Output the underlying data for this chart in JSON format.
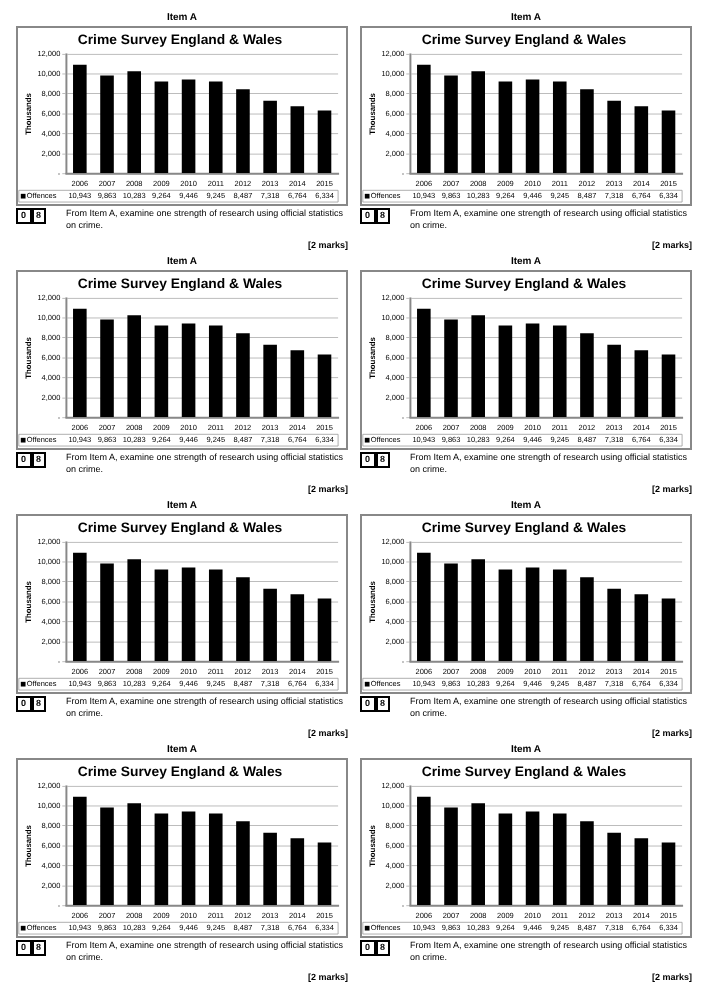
{
  "chart_data": [
    {
      "type": "bar",
      "subtitle": "Item A",
      "title": "Crime Survey England & Wales",
      "ylabel": "Thousands",
      "categories": [
        "2006",
        "2007",
        "2008",
        "2009",
        "2010",
        "2011",
        "2012",
        "2013",
        "2014",
        "2015"
      ],
      "series": [
        {
          "name": "Offences",
          "color": "#000000",
          "values": [
            10943,
            9863,
            10283,
            9264,
            9446,
            9245,
            8487,
            7318,
            6764,
            6334
          ],
          "value_labels": [
            "10,943",
            "9,863",
            "10,283",
            "9,264",
            "9,446",
            "9,245",
            "8,487",
            "7,318",
            "6,764",
            "6,334"
          ]
        }
      ],
      "ylim": [
        0,
        12000
      ],
      "yticks": [
        {
          "value": 0,
          "label": "-"
        },
        {
          "value": 2000,
          "label": "2,000"
        },
        {
          "value": 4000,
          "label": "4,000"
        },
        {
          "value": 6000,
          "label": "6,000"
        },
        {
          "value": 8000,
          "label": "8,000"
        },
        {
          "value": 10000,
          "label": "10,000"
        },
        {
          "value": 12000,
          "label": "12,000"
        }
      ],
      "grid": "y",
      "annotations": [
        "0 8",
        "From Item A, examine one strength of research using official statistics on crime.",
        "[2 marks]"
      ]
    },
    {
      "type": "bar",
      "subtitle": "Item A",
      "title": "Crime Survey England & Wales",
      "ylabel": "Thousands",
      "categories": [
        "2006",
        "2007",
        "2008",
        "2009",
        "2010",
        "2011",
        "2012",
        "2013",
        "2014",
        "2015"
      ],
      "series": [
        {
          "name": "Offences",
          "color": "#000000",
          "values": [
            10943,
            9863,
            10283,
            9264,
            9446,
            9245,
            8487,
            7318,
            6764,
            6334
          ],
          "value_labels": [
            "10,943",
            "9,863",
            "10,283",
            "9,264",
            "9,446",
            "9,245",
            "8,487",
            "7,318",
            "6,764",
            "6,334"
          ]
        }
      ],
      "ylim": [
        0,
        12000
      ],
      "yticks": [
        {
          "value": 0,
          "label": "-"
        },
        {
          "value": 2000,
          "label": "2,000"
        },
        {
          "value": 4000,
          "label": "4,000"
        },
        {
          "value": 6000,
          "label": "6,000"
        },
        {
          "value": 8000,
          "label": "8,000"
        },
        {
          "value": 10000,
          "label": "10,000"
        },
        {
          "value": 12000,
          "label": "12,000"
        }
      ],
      "grid": "y",
      "annotations": [
        "0 8",
        "From Item A, examine one strength of research using official statistics on crime.",
        "[2 marks]"
      ]
    },
    {
      "type": "bar",
      "subtitle": "Item A",
      "title": "Crime Survey England & Wales",
      "ylabel": "Thousands",
      "categories": [
        "2006",
        "2007",
        "2008",
        "2009",
        "2010",
        "2011",
        "2012",
        "2013",
        "2014",
        "2015"
      ],
      "series": [
        {
          "name": "Offences",
          "color": "#000000",
          "values": [
            10943,
            9863,
            10283,
            9264,
            9446,
            9245,
            8487,
            7318,
            6764,
            6334
          ],
          "value_labels": [
            "10,943",
            "9,863",
            "10,283",
            "9,264",
            "9,446",
            "9,245",
            "8,487",
            "7,318",
            "6,764",
            "6,334"
          ]
        }
      ],
      "ylim": [
        0,
        12000
      ],
      "yticks": [
        {
          "value": 0,
          "label": "-"
        },
        {
          "value": 2000,
          "label": "2,000"
        },
        {
          "value": 4000,
          "label": "4,000"
        },
        {
          "value": 6000,
          "label": "6,000"
        },
        {
          "value": 8000,
          "label": "8,000"
        },
        {
          "value": 10000,
          "label": "10,000"
        },
        {
          "value": 12000,
          "label": "12,000"
        }
      ],
      "grid": "y",
      "annotations": [
        "0 8",
        "From Item A, examine one strength of research using official statistics on crime.",
        "[2 marks]"
      ]
    },
    {
      "type": "bar",
      "subtitle": "Item A",
      "title": "Crime Survey England & Wales",
      "ylabel": "Thousands",
      "categories": [
        "2006",
        "2007",
        "2008",
        "2009",
        "2010",
        "2011",
        "2012",
        "2013",
        "2014",
        "2015"
      ],
      "series": [
        {
          "name": "Offences",
          "color": "#000000",
          "values": [
            10943,
            9863,
            10283,
            9264,
            9446,
            9245,
            8487,
            7318,
            6764,
            6334
          ],
          "value_labels": [
            "10,943",
            "9,863",
            "10,283",
            "9,264",
            "9,446",
            "9,245",
            "8,487",
            "7,318",
            "6,764",
            "6,334"
          ]
        }
      ],
      "ylim": [
        0,
        12000
      ],
      "yticks": [
        {
          "value": 0,
          "label": "-"
        },
        {
          "value": 2000,
          "label": "2,000"
        },
        {
          "value": 4000,
          "label": "4,000"
        },
        {
          "value": 6000,
          "label": "6,000"
        },
        {
          "value": 8000,
          "label": "8,000"
        },
        {
          "value": 10000,
          "label": "10,000"
        },
        {
          "value": 12000,
          "label": "12,000"
        }
      ],
      "grid": "y",
      "annotations": [
        "0 8",
        "From Item A, examine one strength of research using official statistics on crime.",
        "[2 marks]"
      ]
    },
    {
      "type": "bar",
      "subtitle": "Item A",
      "title": "Crime Survey England & Wales",
      "ylabel": "Thousands",
      "categories": [
        "2006",
        "2007",
        "2008",
        "2009",
        "2010",
        "2011",
        "2012",
        "2013",
        "2014",
        "2015"
      ],
      "series": [
        {
          "name": "Offences",
          "color": "#000000",
          "values": [
            10943,
            9863,
            10283,
            9264,
            9446,
            9245,
            8487,
            7318,
            6764,
            6334
          ],
          "value_labels": [
            "10,943",
            "9,863",
            "10,283",
            "9,264",
            "9,446",
            "9,245",
            "8,487",
            "7,318",
            "6,764",
            "6,334"
          ]
        }
      ],
      "ylim": [
        0,
        12000
      ],
      "yticks": [
        {
          "value": 0,
          "label": "-"
        },
        {
          "value": 2000,
          "label": "2,000"
        },
        {
          "value": 4000,
          "label": "4,000"
        },
        {
          "value": 6000,
          "label": "6,000"
        },
        {
          "value": 8000,
          "label": "8,000"
        },
        {
          "value": 10000,
          "label": "10,000"
        },
        {
          "value": 12000,
          "label": "12,000"
        }
      ],
      "grid": "y",
      "annotations": [
        "0 8",
        "From Item A, examine one strength of research using official statistics on crime.",
        "[2 marks]"
      ]
    },
    {
      "type": "bar",
      "subtitle": "Item A",
      "title": "Crime Survey England & Wales",
      "ylabel": "Thousands",
      "categories": [
        "2006",
        "2007",
        "2008",
        "2009",
        "2010",
        "2011",
        "2012",
        "2013",
        "2014",
        "2015"
      ],
      "series": [
        {
          "name": "Offences",
          "color": "#000000",
          "values": [
            10943,
            9863,
            10283,
            9264,
            9446,
            9245,
            8487,
            7318,
            6764,
            6334
          ],
          "value_labels": [
            "10,943",
            "9,863",
            "10,283",
            "9,264",
            "9,446",
            "9,245",
            "8,487",
            "7,318",
            "6,764",
            "6,334"
          ]
        }
      ],
      "ylim": [
        0,
        12000
      ],
      "yticks": [
        {
          "value": 0,
          "label": "-"
        },
        {
          "value": 2000,
          "label": "2,000"
        },
        {
          "value": 4000,
          "label": "4,000"
        },
        {
          "value": 6000,
          "label": "6,000"
        },
        {
          "value": 8000,
          "label": "8,000"
        },
        {
          "value": 10000,
          "label": "10,000"
        },
        {
          "value": 12000,
          "label": "12,000"
        }
      ],
      "grid": "y",
      "annotations": [
        "0 8",
        "From Item A, examine one strength of research using official statistics on crime.",
        "[2 marks]"
      ]
    },
    {
      "type": "bar",
      "subtitle": "Item A",
      "title": "Crime Survey England & Wales",
      "ylabel": "Thousands",
      "categories": [
        "2006",
        "2007",
        "2008",
        "2009",
        "2010",
        "2011",
        "2012",
        "2013",
        "2014",
        "2015"
      ],
      "series": [
        {
          "name": "Offences",
          "color": "#000000",
          "values": [
            10943,
            9863,
            10283,
            9264,
            9446,
            9245,
            8487,
            7318,
            6764,
            6334
          ],
          "value_labels": [
            "10,943",
            "9,863",
            "10,283",
            "9,264",
            "9,446",
            "9,245",
            "8,487",
            "7,318",
            "6,764",
            "6,334"
          ]
        }
      ],
      "ylim": [
        0,
        12000
      ],
      "yticks": [
        {
          "value": 0,
          "label": "-"
        },
        {
          "value": 2000,
          "label": "2,000"
        },
        {
          "value": 4000,
          "label": "4,000"
        },
        {
          "value": 6000,
          "label": "6,000"
        },
        {
          "value": 8000,
          "label": "8,000"
        },
        {
          "value": 10000,
          "label": "10,000"
        },
        {
          "value": 12000,
          "label": "12,000"
        }
      ],
      "grid": "y",
      "annotations": [
        "0 8",
        "From Item A, examine one strength of research using official statistics on crime.",
        "[2 marks]"
      ]
    },
    {
      "type": "bar",
      "subtitle": "Item A",
      "title": "Crime Survey England & Wales",
      "ylabel": "Thousands",
      "categories": [
        "2006",
        "2007",
        "2008",
        "2009",
        "2010",
        "2011",
        "2012",
        "2013",
        "2014",
        "2015"
      ],
      "series": [
        {
          "name": "Offences",
          "color": "#000000",
          "values": [
            10943,
            9863,
            10283,
            9264,
            9446,
            9245,
            8487,
            7318,
            6764,
            6334
          ],
          "value_labels": [
            "10,943",
            "9,863",
            "10,283",
            "9,264",
            "9,446",
            "9,245",
            "8,487",
            "7,318",
            "6,764",
            "6,334"
          ]
        }
      ],
      "ylim": [
        0,
        12000
      ],
      "yticks": [
        {
          "value": 0,
          "label": "-"
        },
        {
          "value": 2000,
          "label": "2,000"
        },
        {
          "value": 4000,
          "label": "4,000"
        },
        {
          "value": 6000,
          "label": "6,000"
        },
        {
          "value": 8000,
          "label": "8,000"
        },
        {
          "value": 10000,
          "label": "10,000"
        },
        {
          "value": 12000,
          "label": "12,000"
        }
      ],
      "grid": "y",
      "annotations": [
        "0 8",
        "From Item A, examine one strength of research using official statistics on crime.",
        "[2 marks]"
      ]
    }
  ]
}
